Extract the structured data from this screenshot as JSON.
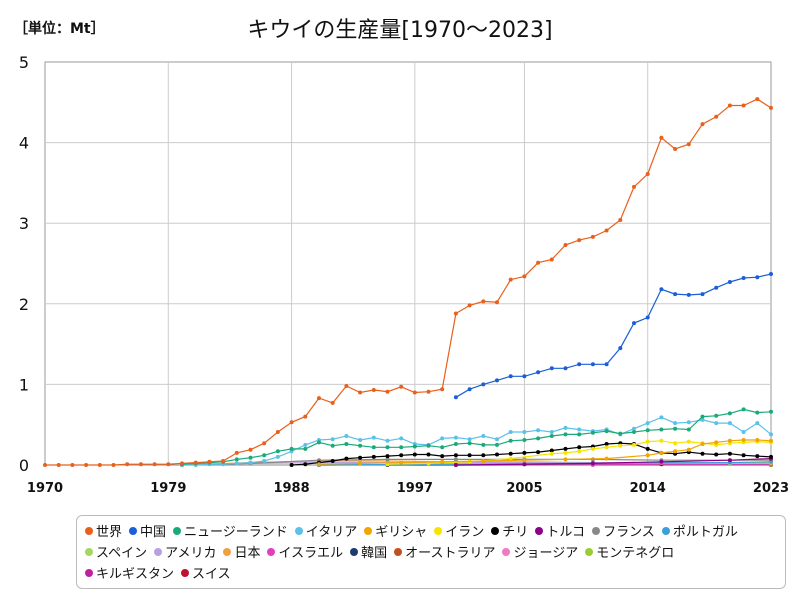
{
  "header": {
    "unit": "［単位：Mt］",
    "title": "キウイの生産量[1970～2023]"
  },
  "chart_data": {
    "type": "line",
    "x_range": [
      1970,
      2023
    ],
    "x_ticks": [
      "1970",
      "1979",
      "1988",
      "1997",
      "2005",
      "2014",
      "2023"
    ],
    "x_tick_values": [
      1970,
      1979,
      1988,
      1997,
      2005,
      2014,
      2023
    ],
    "ylim": [
      0,
      5
    ],
    "y_ticks": [
      "0",
      "1",
      "2",
      "3",
      "4",
      "5"
    ],
    "grid": true,
    "legend_position": "bottom",
    "series": [
      {
        "name": "世界",
        "color": "#e8601c",
        "x": [
          1970,
          1971,
          1972,
          1973,
          1974,
          1975,
          1976,
          1977,
          1978,
          1979,
          1980,
          1981,
          1982,
          1983,
          1984,
          1985,
          1986,
          1987,
          1988,
          1989,
          1990,
          1991,
          1992,
          1993,
          1994,
          1995,
          1996,
          1997,
          1998,
          1999,
          2000,
          2001,
          2002,
          2003,
          2004,
          2005,
          2006,
          2007,
          2008,
          2009,
          2010,
          2011,
          2012,
          2013,
          2014,
          2015,
          2016,
          2017,
          2018,
          2019,
          2020,
          2021,
          2022,
          2023
        ],
        "values": [
          0,
          0,
          0,
          0,
          0,
          0,
          0.01,
          0.01,
          0.01,
          0.01,
          0.02,
          0.03,
          0.04,
          0.05,
          0.15,
          0.19,
          0.27,
          0.41,
          0.53,
          0.6,
          0.83,
          0.77,
          0.98,
          0.9,
          0.93,
          0.91,
          0.97,
          0.9,
          0.91,
          0.94,
          1.88,
          1.98,
          2.03,
          2.02,
          2.3,
          2.34,
          2.51,
          2.55,
          2.73,
          2.79,
          2.83,
          2.91,
          3.04,
          3.45,
          3.61,
          4.06,
          3.92,
          3.98,
          4.23,
          4.32,
          4.46,
          4.46,
          4.54,
          4.43
        ]
      },
      {
        "name": "中国",
        "color": "#1a5fd8",
        "x": [
          2000,
          2001,
          2002,
          2003,
          2004,
          2005,
          2006,
          2007,
          2008,
          2009,
          2010,
          2011,
          2012,
          2013,
          2014,
          2015,
          2016,
          2017,
          2018,
          2019,
          2020,
          2021,
          2022,
          2023
        ],
        "values": [
          0.84,
          0.94,
          1.0,
          1.05,
          1.1,
          1.1,
          1.15,
          1.2,
          1.2,
          1.25,
          1.25,
          1.25,
          1.45,
          1.76,
          1.83,
          2.18,
          2.12,
          2.11,
          2.12,
          2.2,
          2.27,
          2.32,
          2.33,
          2.37
        ]
      },
      {
        "name": "ニュージーランド",
        "color": "#1aaa78",
        "x": [
          1980,
          1981,
          1982,
          1983,
          1984,
          1985,
          1986,
          1987,
          1988,
          1989,
          1990,
          1991,
          1992,
          1993,
          1994,
          1995,
          1996,
          1997,
          1998,
          1999,
          2000,
          2001,
          2002,
          2003,
          2004,
          2005,
          2006,
          2007,
          2008,
          2009,
          2010,
          2011,
          2012,
          2013,
          2014,
          2015,
          2016,
          2017,
          2018,
          2019,
          2020,
          2021,
          2022,
          2023
        ],
        "values": [
          0.01,
          0.02,
          0.03,
          0.04,
          0.07,
          0.09,
          0.12,
          0.17,
          0.2,
          0.2,
          0.28,
          0.24,
          0.26,
          0.24,
          0.22,
          0.22,
          0.22,
          0.23,
          0.24,
          0.22,
          0.26,
          0.27,
          0.25,
          0.25,
          0.3,
          0.31,
          0.33,
          0.36,
          0.38,
          0.38,
          0.4,
          0.42,
          0.39,
          0.41,
          0.43,
          0.44,
          0.45,
          0.44,
          0.6,
          0.61,
          0.64,
          0.69,
          0.65,
          0.66
        ]
      },
      {
        "name": "イタリア",
        "color": "#5bc1e8",
        "x": [
          1980,
          1981,
          1982,
          1983,
          1984,
          1985,
          1986,
          1987,
          1988,
          1989,
          1990,
          1991,
          1992,
          1993,
          1994,
          1995,
          1996,
          1997,
          1998,
          1999,
          2000,
          2001,
          2002,
          2003,
          2004,
          2005,
          2006,
          2007,
          2008,
          2009,
          2010,
          2011,
          2012,
          2013,
          2014,
          2015,
          2016,
          2017,
          2018,
          2019,
          2020,
          2021,
          2022,
          2023
        ],
        "values": [
          0.0,
          0.0,
          0.01,
          0.01,
          0.02,
          0.03,
          0.05,
          0.1,
          0.17,
          0.25,
          0.31,
          0.32,
          0.36,
          0.31,
          0.34,
          0.3,
          0.33,
          0.26,
          0.25,
          0.33,
          0.34,
          0.32,
          0.36,
          0.32,
          0.41,
          0.41,
          0.43,
          0.41,
          0.46,
          0.44,
          0.42,
          0.44,
          0.38,
          0.45,
          0.52,
          0.59,
          0.52,
          0.53,
          0.56,
          0.52,
          0.52,
          0.41,
          0.52,
          0.38
        ]
      },
      {
        "name": "ギリシャ",
        "color": "#f0a500",
        "x": [
          1990,
          1993,
          1996,
          1999,
          2002,
          2005,
          2008,
          2011,
          2014,
          2015,
          2016,
          2017,
          2018,
          2019,
          2020,
          2021,
          2022,
          2023
        ],
        "values": [
          0.01,
          0.02,
          0.03,
          0.04,
          0.05,
          0.06,
          0.07,
          0.08,
          0.12,
          0.15,
          0.17,
          0.19,
          0.26,
          0.28,
          0.3,
          0.31,
          0.31,
          0.3
        ]
      },
      {
        "name": "イラン",
        "color": "#f5e400",
        "x": [
          1995,
          1998,
          2001,
          2004,
          2007,
          2008,
          2009,
          2010,
          2011,
          2012,
          2013,
          2014,
          2015,
          2016,
          2017,
          2018,
          2019,
          2020,
          2021,
          2022,
          2023
        ],
        "values": [
          0.01,
          0.02,
          0.04,
          0.08,
          0.14,
          0.15,
          0.17,
          0.2,
          0.22,
          0.24,
          0.25,
          0.29,
          0.3,
          0.27,
          0.29,
          0.27,
          0.25,
          0.27,
          0.28,
          0.29,
          0.28
        ]
      },
      {
        "name": "チリ",
        "color": "#000000",
        "x": [
          1988,
          1989,
          1990,
          1991,
          1992,
          1993,
          1994,
          1995,
          1996,
          1997,
          1998,
          1999,
          2000,
          2001,
          2002,
          2003,
          2004,
          2005,
          2006,
          2007,
          2008,
          2009,
          2010,
          2011,
          2012,
          2013,
          2014,
          2015,
          2016,
          2017,
          2018,
          2019,
          2020,
          2021,
          2022,
          2023
        ],
        "values": [
          0.0,
          0.01,
          0.03,
          0.05,
          0.08,
          0.09,
          0.1,
          0.11,
          0.12,
          0.13,
          0.13,
          0.11,
          0.12,
          0.12,
          0.12,
          0.13,
          0.14,
          0.15,
          0.16,
          0.18,
          0.2,
          0.22,
          0.23,
          0.26,
          0.27,
          0.26,
          0.2,
          0.15,
          0.14,
          0.16,
          0.14,
          0.13,
          0.14,
          0.12,
          0.11,
          0.1
        ]
      },
      {
        "name": "トルコ",
        "color": "#8b008b",
        "x": [
          2000,
          2005,
          2010,
          2015,
          2020,
          2023
        ],
        "values": [
          0.0,
          0.01,
          0.02,
          0.04,
          0.06,
          0.08
        ]
      },
      {
        "name": "フランス",
        "color": "#888888",
        "x": [
          1980,
          1985,
          1990,
          1995,
          2000,
          2005,
          2010,
          2015,
          2020,
          2023
        ],
        "values": [
          0.0,
          0.02,
          0.06,
          0.07,
          0.07,
          0.07,
          0.07,
          0.06,
          0.06,
          0.06
        ]
      },
      {
        "name": "ポルトガル",
        "color": "#3aa0dc",
        "x": [
          1990,
          2000,
          2010,
          2020,
          2023
        ],
        "values": [
          0.0,
          0.01,
          0.02,
          0.03,
          0.04
        ]
      },
      {
        "name": "スペイン",
        "color": "#a5d65f",
        "x": [
          1990,
          2000,
          2010,
          2020,
          2023
        ],
        "values": [
          0.0,
          0.01,
          0.02,
          0.02,
          0.03
        ]
      },
      {
        "name": "アメリカ",
        "color": "#b9a0e0",
        "x": [
          1980,
          1990,
          2000,
          2010,
          2020,
          2023
        ],
        "values": [
          0.01,
          0.03,
          0.03,
          0.03,
          0.03,
          0.03
        ]
      },
      {
        "name": "日本",
        "color": "#f0a040",
        "x": [
          1980,
          1985,
          1990,
          1995,
          2000,
          2005,
          2010,
          2015,
          2020,
          2023
        ],
        "values": [
          0.0,
          0.03,
          0.05,
          0.05,
          0.04,
          0.04,
          0.03,
          0.03,
          0.02,
          0.02
        ]
      },
      {
        "name": "イスラエル",
        "color": "#e040c0",
        "x": [
          1990,
          2000,
          2010,
          2023
        ],
        "values": [
          0.0,
          0.01,
          0.01,
          0.01
        ]
      },
      {
        "name": "韓国",
        "color": "#1f3a6e",
        "x": [
          1995,
          2005,
          2015,
          2023
        ],
        "values": [
          0.0,
          0.01,
          0.01,
          0.01
        ]
      },
      {
        "name": "オーストラリア",
        "color": "#c0501f",
        "x": [
          1990,
          2000,
          2010,
          2023
        ],
        "values": [
          0.0,
          0.0,
          0.01,
          0.01
        ]
      },
      {
        "name": "ジョージア",
        "color": "#f07abf",
        "x": [
          2000,
          2010,
          2023
        ],
        "values": [
          0.0,
          0.0,
          0.01
        ]
      },
      {
        "name": "モンテネグロ",
        "color": "#9acd32",
        "x": [
          2010,
          2023
        ],
        "values": [
          0.0,
          0.0
        ]
      },
      {
        "name": "キルギスタン",
        "color": "#c020a0",
        "x": [
          2010,
          2023
        ],
        "values": [
          0.0,
          0.0
        ]
      },
      {
        "name": "スイス",
        "color": "#c01030",
        "x": [
          2000,
          2023
        ],
        "values": [
          0.0,
          0.0
        ]
      }
    ]
  }
}
